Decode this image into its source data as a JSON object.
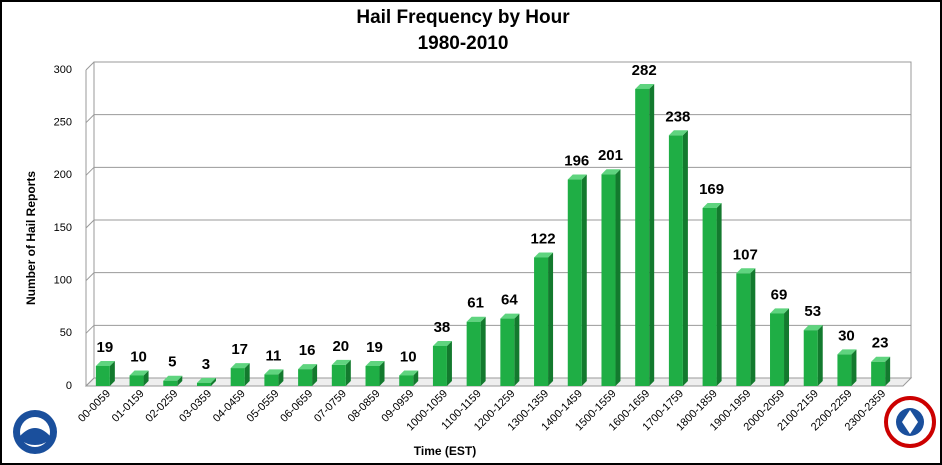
{
  "chart_data": {
    "type": "bar",
    "title": "Hail Frequency by Hour",
    "subtitle": "1980-2010",
    "x_label": "Time (EST)",
    "y_label": "Number of Hail Reports",
    "categories": [
      "00-0059",
      "01-0159",
      "02-0259",
      "03-0359",
      "04-0459",
      "05-0559",
      "06-0659",
      "07-0759",
      "08-0859",
      "09-0959",
      "1000-1059",
      "1100-1159",
      "1200-1259",
      "1300-1359",
      "1400-1459",
      "1500-1559",
      "1600-1659",
      "1700-1759",
      "1800-1859",
      "1900-1959",
      "2000-2059",
      "2100-2159",
      "2200-2259",
      "2300-2359"
    ],
    "values": [
      19,
      10,
      5,
      3,
      17,
      11,
      16,
      20,
      19,
      10,
      38,
      61,
      64,
      122,
      196,
      201,
      282,
      238,
      169,
      107,
      69,
      53,
      30,
      23
    ],
    "color": "#1fae45",
    "ylim": [
      0,
      300
    ],
    "yticks": [
      0,
      50,
      100,
      150,
      200,
      250,
      300
    ],
    "grid": true
  }
}
